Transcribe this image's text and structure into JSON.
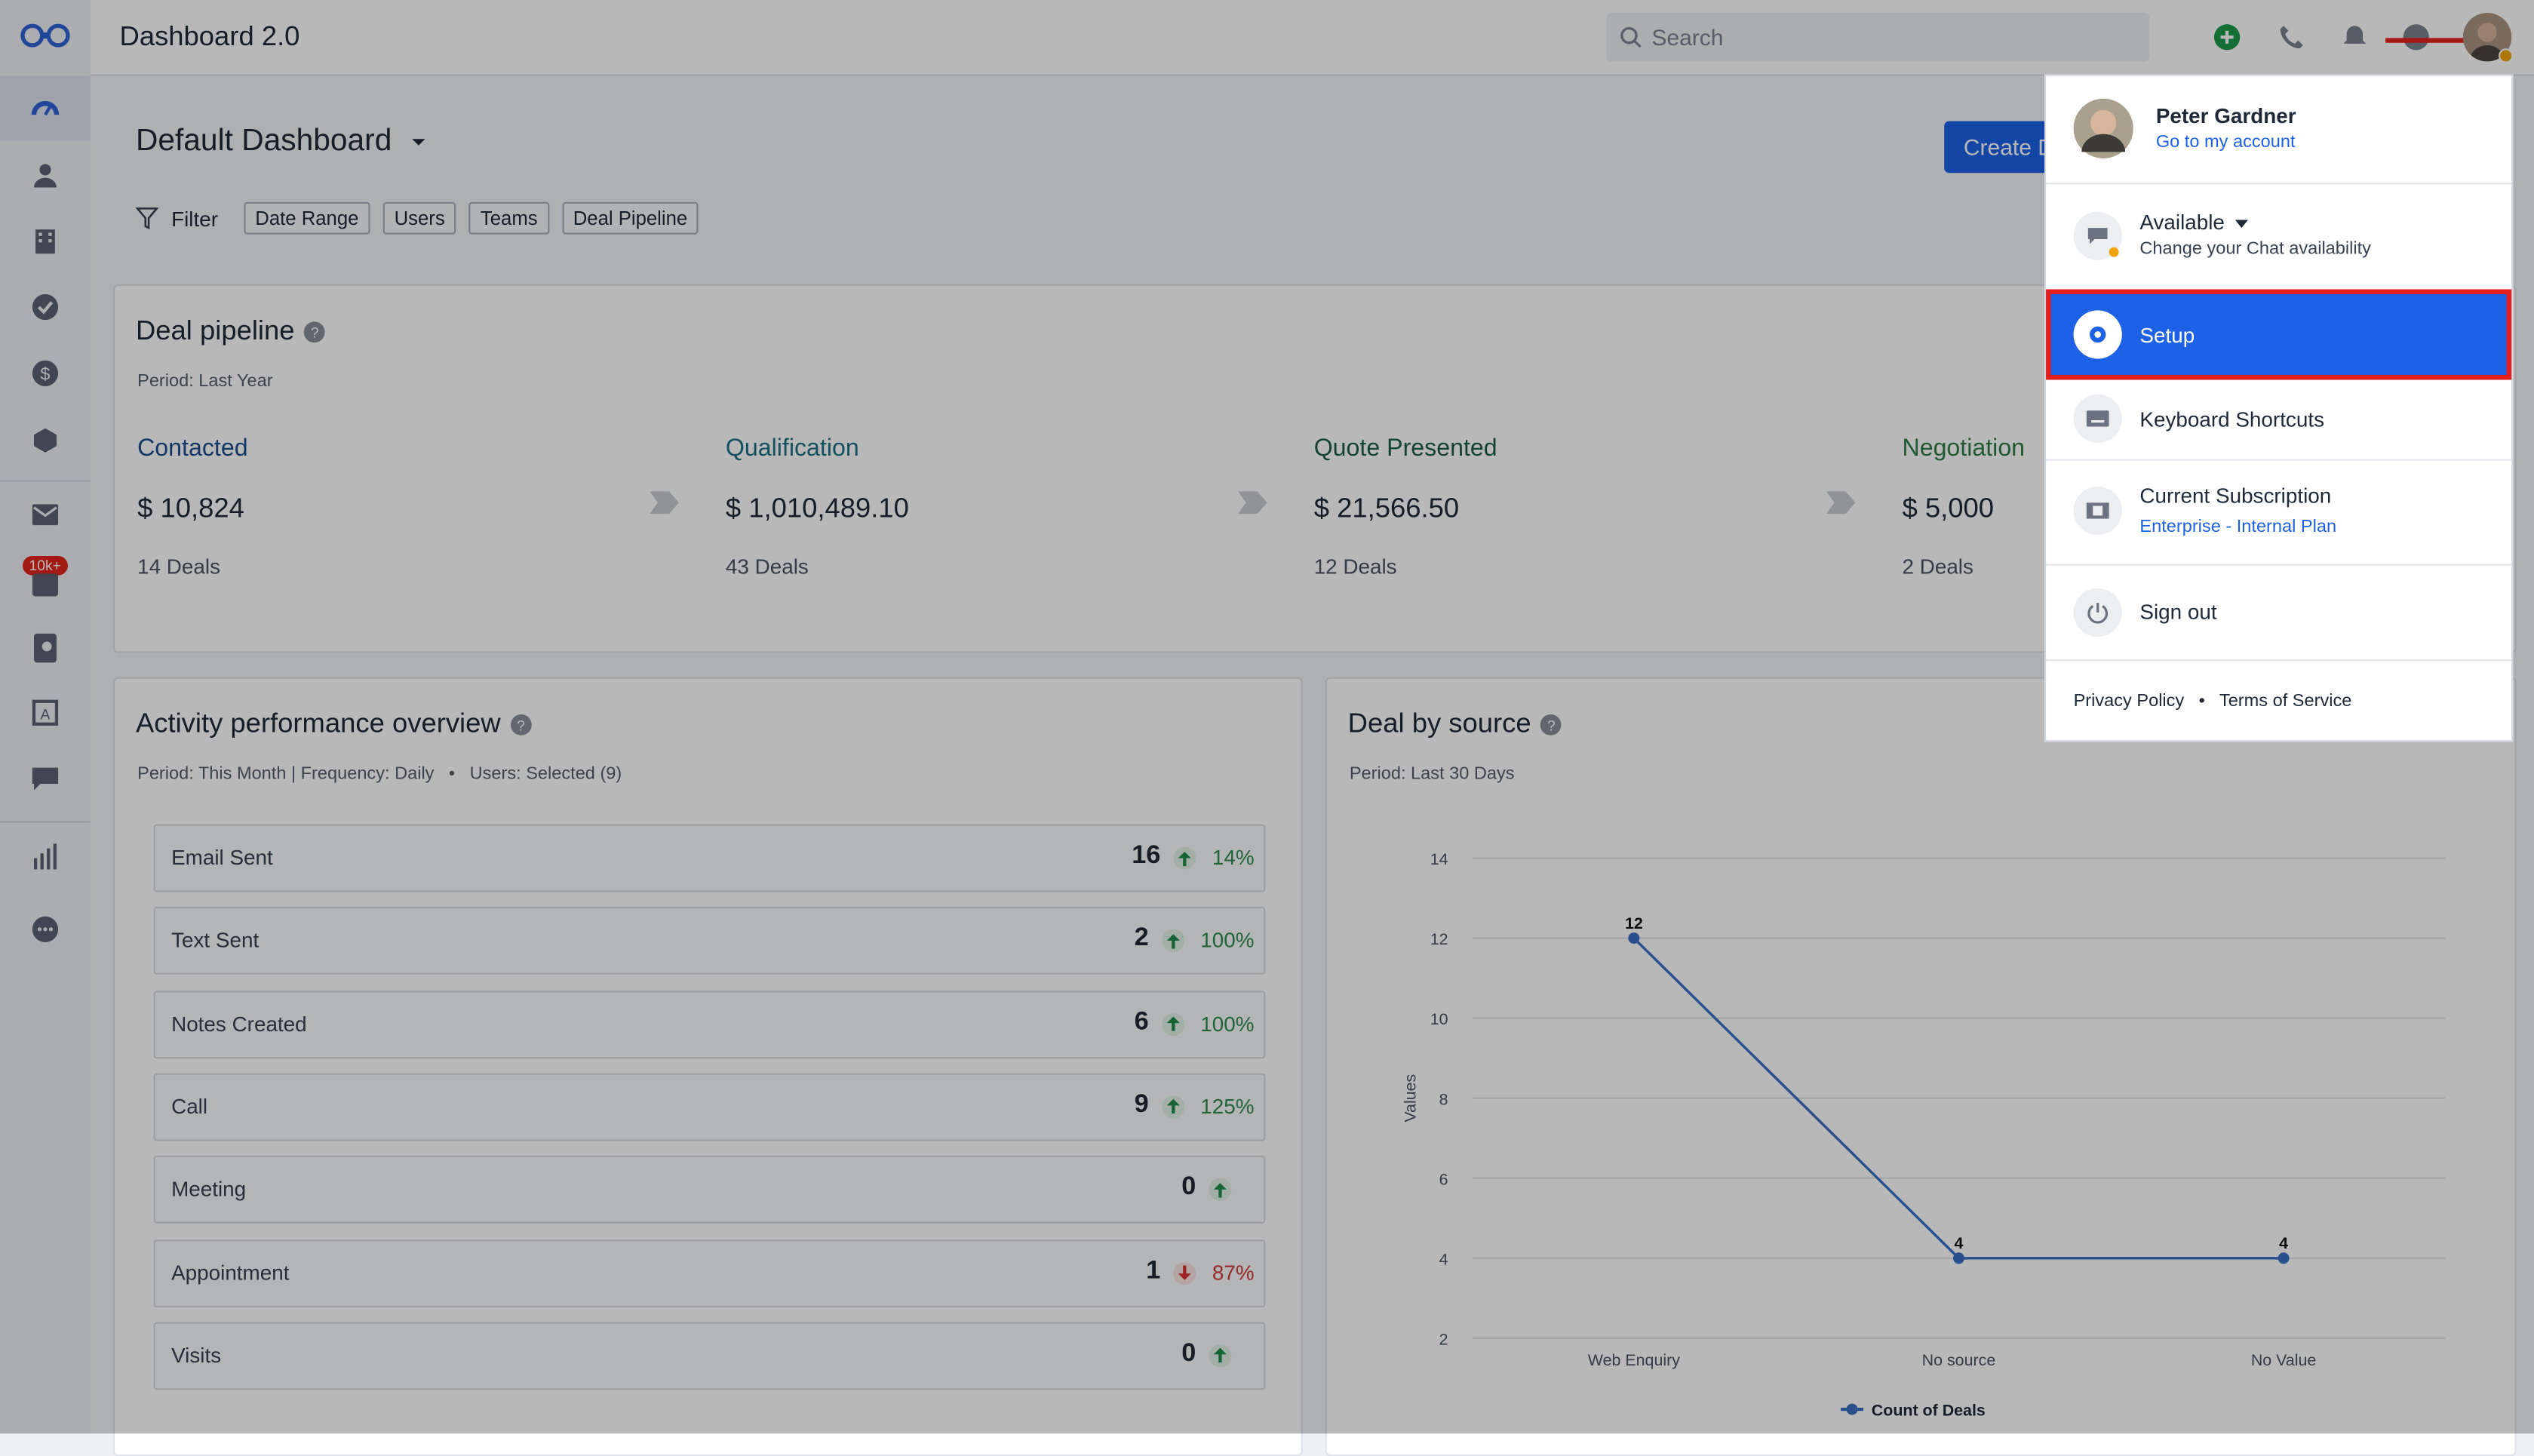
{
  "app": {
    "title": "Dashboard 2.0"
  },
  "search": {
    "placeholder": "Search"
  },
  "sidebar": {
    "badge": "10k+"
  },
  "dashboard": {
    "title": "Default Dashboard",
    "create_label": "Create D"
  },
  "filter": {
    "label": "Filter",
    "chips": [
      "Date Range",
      "Users",
      "Teams",
      "Deal Pipeline"
    ]
  },
  "pipeline": {
    "title": "Deal pipeline",
    "period": "Period: Last Year",
    "stages": [
      {
        "name": "Contacted",
        "amount": "$ 10,824",
        "deals": "14 Deals",
        "color": "#1a4d8f"
      },
      {
        "name": "Qualification",
        "amount": "$ 1,010,489.10",
        "deals": "43 Deals",
        "color": "#1c6f86"
      },
      {
        "name": "Quote Presented",
        "amount": "$ 21,566.50",
        "deals": "12 Deals",
        "color": "#1d5e48"
      },
      {
        "name": "Negotiation",
        "amount": "$ 5,000",
        "deals": "2 Deals",
        "color": "#2f7d45"
      }
    ]
  },
  "activity": {
    "title": "Activity performance overview",
    "period": "Period: This Month | Frequency: Daily",
    "users": "Users: Selected (9)",
    "rows": [
      {
        "label": "Email Sent",
        "value": "16",
        "dir": "up",
        "pct": "14%"
      },
      {
        "label": "Text Sent",
        "value": "2",
        "dir": "up",
        "pct": "100%"
      },
      {
        "label": "Notes Created",
        "value": "6",
        "dir": "up",
        "pct": "100%"
      },
      {
        "label": "Call",
        "value": "9",
        "dir": "up",
        "pct": "125%"
      },
      {
        "label": "Meeting",
        "value": "0",
        "dir": "up",
        "pct": ""
      },
      {
        "label": "Appointment",
        "value": "1",
        "dir": "down",
        "pct": "87%"
      },
      {
        "label": "Visits",
        "value": "0",
        "dir": "up",
        "pct": ""
      }
    ]
  },
  "source": {
    "title": "Deal by source",
    "period": "Period: Last 30 Days"
  },
  "chart_data": {
    "type": "line",
    "categories": [
      "Web Enquiry",
      "No source",
      "No Value"
    ],
    "series": [
      {
        "name": "Count of Deals",
        "values": [
          12,
          4,
          4
        ],
        "color": "#3a6fc4"
      }
    ],
    "ylabel": "Values",
    "ylim": [
      2,
      14
    ],
    "yticks": [
      2,
      4,
      6,
      8,
      10,
      12,
      14
    ],
    "grid": true,
    "legend": "bottom"
  },
  "user_menu": {
    "name": "Peter Gardner",
    "account_link": "Go to my account",
    "status": "Available",
    "status_sub": "Change your Chat availability",
    "setup": "Setup",
    "shortcuts": "Keyboard Shortcuts",
    "subscription": "Current Subscription",
    "plan": "Enterprise - Internal Plan",
    "signout": "Sign out",
    "privacy": "Privacy Policy",
    "terms": "Terms of Service",
    "separator": "•"
  }
}
